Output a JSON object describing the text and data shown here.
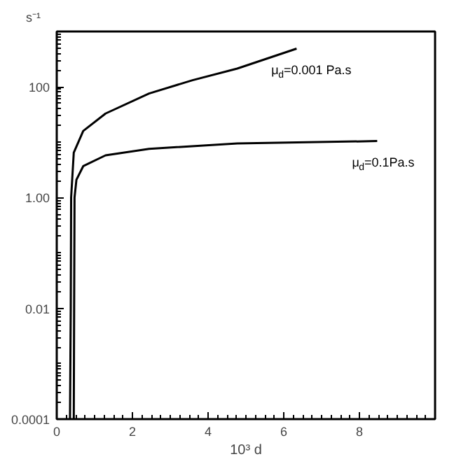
{
  "chart_data": {
    "type": "line",
    "xlabel": "10³ d",
    "ylabel": "s⁻¹",
    "log": "y",
    "grid": false,
    "line_style": "solid",
    "marker": "none",
    "xlim": [
      0,
      10
    ],
    "xticks": [
      0,
      2,
      4,
      6,
      8
    ],
    "ylim": [
      0.0001,
      1000
    ],
    "yticks": [
      {
        "value": 0.0001,
        "label": "0.0001"
      },
      {
        "value": 0.01,
        "label": "0.01"
      },
      {
        "value": 1,
        "label": "1.00"
      },
      100
    ],
    "series": [
      {
        "color": "#000000",
        "x": [
          0.35,
          0.37,
          0.38,
          0.45,
          0.7,
          1.29,
          2.44,
          3.59,
          4.77,
          6.34
        ],
        "values": [
          0.0001,
          0.01,
          1,
          6.5,
          16,
          33,
          76,
          132,
          214,
          490
        ]
      },
      {
        "color": "#000000",
        "x": [
          0.45,
          0.46,
          0.47,
          0.52,
          0.7,
          1.29,
          2.44,
          4.77,
          8.47
        ],
        "values": [
          0.0001,
          0.01,
          1,
          2.1,
          3.7,
          5.8,
          7.6,
          9.5,
          10.5
        ]
      }
    ],
    "annotations": [
      "μ$_{d}$=0.001 Pa.s",
      "μ$_{d}$=0.1Pa.s"
    ]
  }
}
